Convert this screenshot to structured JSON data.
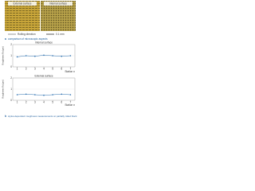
{
  "panel_a": {
    "labels": [
      "External surface",
      "Internal surface"
    ],
    "direction": "Rolling direction",
    "scale": "0.1 mm",
    "letter": "a",
    "caption": "comparison of microscopic aspects"
  },
  "chart_data": [
    {
      "type": "line",
      "title": "Internal surface",
      "ylabel": "Roughness Ra (µm)",
      "xlabel": "Station n",
      "x": [
        1,
        2,
        3,
        4,
        5,
        6,
        7
      ],
      "series": [
        {
          "color": "#2a6fb0",
          "values": [
            0.9,
            1.0,
            0.95,
            1.05,
            1.0,
            0.95,
            1.0
          ]
        }
      ],
      "xlim": [
        0.5,
        7.5
      ],
      "xticks": [
        1,
        2,
        3,
        4,
        5,
        6,
        7
      ],
      "ylim": [
        0,
        2
      ],
      "yticks": [
        0,
        1,
        2
      ]
    },
    {
      "type": "line",
      "title": "External surface",
      "ylabel": "Roughness Ra (µm)",
      "xlabel": "Station n",
      "x": [
        1,
        2,
        3,
        4,
        5,
        6,
        7
      ],
      "series": [
        {
          "color": "#2a6fb0",
          "values": [
            0.5,
            0.55,
            0.5,
            0.45,
            0.5,
            0.55,
            0.5
          ]
        }
      ],
      "xlim": [
        0.5,
        7.5
      ],
      "xticks": [
        1,
        2,
        3,
        4,
        5,
        6,
        7
      ],
      "ylim": [
        0,
        2
      ],
      "yticks": [
        0,
        1,
        2
      ]
    }
  ],
  "panel_b": {
    "letter": "b",
    "caption": "stylus-dependent roughness measurements on partially rolled block"
  }
}
